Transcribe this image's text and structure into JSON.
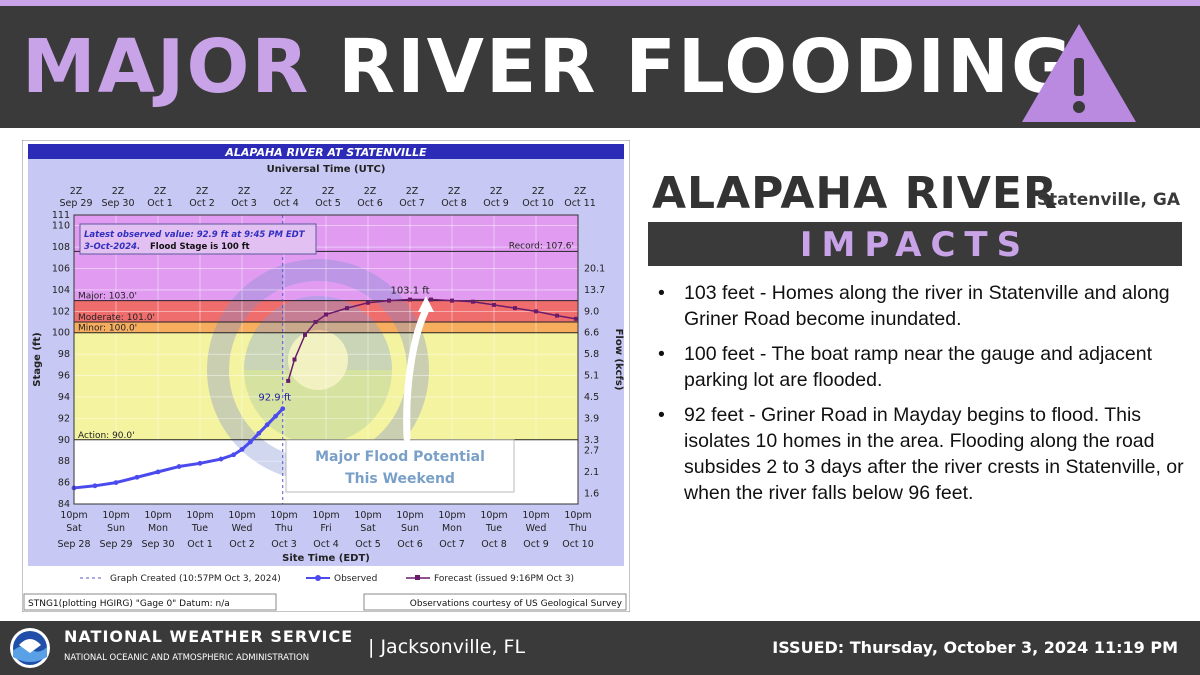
{
  "banner": {
    "title_major": "MAJOR",
    "title_rest": "RIVER FLOODING",
    "icon": "warning-triangle-icon",
    "accent_color": "#c9a3e8"
  },
  "chart_data": {
    "type": "line",
    "title": "ALAPAHA RIVER AT STATENVILLE",
    "top_axis_label": "Universal Time (UTC)",
    "top_ticks": [
      {
        "hour": "2Z",
        "date": "Sep 29"
      },
      {
        "hour": "2Z",
        "date": "Sep 30"
      },
      {
        "hour": "2Z",
        "date": "Oct 1"
      },
      {
        "hour": "2Z",
        "date": "Oct 2"
      },
      {
        "hour": "2Z",
        "date": "Oct 3"
      },
      {
        "hour": "2Z",
        "date": "Oct 4"
      },
      {
        "hour": "2Z",
        "date": "Oct 5"
      },
      {
        "hour": "2Z",
        "date": "Oct 6"
      },
      {
        "hour": "2Z",
        "date": "Oct 7"
      },
      {
        "hour": "2Z",
        "date": "Oct 8"
      },
      {
        "hour": "2Z",
        "date": "Oct 9"
      },
      {
        "hour": "2Z",
        "date": "Oct 10"
      },
      {
        "hour": "2Z",
        "date": "Oct 11"
      }
    ],
    "bottom_axis_label": "Site Time (EDT)",
    "bottom_ticks": [
      {
        "time": "10pm",
        "day": "Sat",
        "date": "Sep 28"
      },
      {
        "time": "10pm",
        "day": "Sun",
        "date": "Sep 29"
      },
      {
        "time": "10pm",
        "day": "Mon",
        "date": "Sep 30"
      },
      {
        "time": "10pm",
        "day": "Tue",
        "date": "Oct 1"
      },
      {
        "time": "10pm",
        "day": "Wed",
        "date": "Oct 2"
      },
      {
        "time": "10pm",
        "day": "Thu",
        "date": "Oct 3"
      },
      {
        "time": "10pm",
        "day": "Fri",
        "date": "Oct 4"
      },
      {
        "time": "10pm",
        "day": "Sat",
        "date": "Oct 5"
      },
      {
        "time": "10pm",
        "day": "Sun",
        "date": "Oct 6"
      },
      {
        "time": "10pm",
        "day": "Mon",
        "date": "Oct 7"
      },
      {
        "time": "10pm",
        "day": "Tue",
        "date": "Oct 8"
      },
      {
        "time": "10pm",
        "day": "Wed",
        "date": "Oct 9"
      },
      {
        "time": "10pm",
        "day": "Thu",
        "date": "Oct 10"
      }
    ],
    "y_label": "Stage (ft)",
    "y_ticks": [
      "84",
      "86",
      "88",
      "90",
      "92",
      "94",
      "96",
      "98",
      "100",
      "102",
      "104",
      "106",
      "108",
      "110",
      "111"
    ],
    "ylim": [
      84,
      111
    ],
    "y2_label": "Flow (kcfs)",
    "y2_ticks": [
      {
        "stage": 85,
        "label": "1.6"
      },
      {
        "stage": 87,
        "label": "2.1"
      },
      {
        "stage": 89,
        "label": "2.7"
      },
      {
        "stage": 90,
        "label": "3.3"
      },
      {
        "stage": 92,
        "label": "3.9"
      },
      {
        "stage": 94,
        "label": "4.5"
      },
      {
        "stage": 96,
        "label": "5.1"
      },
      {
        "stage": 98,
        "label": "5.8"
      },
      {
        "stage": 100,
        "label": "6.6"
      },
      {
        "stage": 102,
        "label": "9.0"
      },
      {
        "stage": 104,
        "label": "13.7"
      },
      {
        "stage": 106,
        "label": "20.1"
      }
    ],
    "xlim_days": [
      0,
      12
    ],
    "flood_categories": [
      {
        "label": "Action: 90.0'",
        "stage": 90.0,
        "color": "#f4f3a0"
      },
      {
        "label": "Minor: 100.0'",
        "stage": 100.0,
        "color": "#f6ad5e"
      },
      {
        "label": "Moderate: 101.0'",
        "stage": 101.0,
        "color": "#f06d6d"
      },
      {
        "label": "Major: 103.0'",
        "stage": 103.0,
        "color": "#e19cf2"
      }
    ],
    "record": {
      "label": "Record: 107.6'",
      "stage": 107.6
    },
    "observed": {
      "name": "Observed",
      "color": "#4a4aee",
      "x": [
        0,
        0.5,
        1,
        1.5,
        2,
        2.5,
        3,
        3.5,
        3.8,
        4.0,
        4.2,
        4.4,
        4.6,
        4.8,
        4.97
      ],
      "y": [
        85.5,
        85.7,
        86.0,
        86.5,
        87.0,
        87.5,
        87.8,
        88.2,
        88.6,
        89.1,
        89.8,
        90.6,
        91.4,
        92.2,
        92.9
      ],
      "label": "92.9 ft"
    },
    "forecast": {
      "name": "Forecast (issued 9:16PM Oct 3)",
      "color": "#6a1b6a",
      "x": [
        5.1,
        5.25,
        5.5,
        5.75,
        6,
        6.5,
        7,
        7.5,
        8,
        8.5,
        9,
        9.5,
        10,
        10.5,
        11,
        11.5,
        11.95
      ],
      "y": [
        95.5,
        97.5,
        99.8,
        101.0,
        101.7,
        102.3,
        102.8,
        103.0,
        103.1,
        103.1,
        103.0,
        102.9,
        102.6,
        102.3,
        102.0,
        101.6,
        101.3
      ],
      "crest_label": "103.1 ft"
    },
    "annotation_line1": "Latest observed value: 92.9 ft at 9:45 PM EDT",
    "annotation_line2a": "3-Oct-2024.",
    "annotation_line2b": "Flood Stage is 100 ft",
    "callout_line1": "Major Flood Potential",
    "callout_line2": "This Weekend",
    "legend": {
      "created": "Graph Created (10:57PM Oct 3, 2024)",
      "observed": "Observed",
      "forecast": "Forecast (issued 9:16PM Oct 3)"
    },
    "footer_left": "STNG1(plotting HGIRG) \"Gage 0\" Datum: n/a",
    "footer_right": "Observations courtesy of US Geological Survey",
    "watermark": "noaa-seal-watermark"
  },
  "right": {
    "river": "ALAPAHA RIVER",
    "city": "Statenville, GA",
    "impacts_title": "IMPACTS",
    "impacts": [
      "103 feet - Homes along the river in Statenville and along Griner Road become inundated.",
      "100 feet - The boat ramp near the gauge and adjacent parking lot are flooded.",
      "92 feet - Griner Road in Mayday begins to flood. This isolates 10 homes in the area. Flooding along the road subsides 2 to 3 days after the river crests in Statenville, or when the river falls below 96 feet."
    ]
  },
  "footer": {
    "logo": "noaa-logo-icon",
    "agency": "NATIONAL WEATHER SERVICE",
    "parent": "NATIONAL OCEANIC AND ATMOSPHERIC ADMINISTRATION",
    "office": "| Jacksonville, FL",
    "issued_label": "ISSUED:",
    "issued_value": "Thursday, October 3, 2024 11:19 PM"
  }
}
